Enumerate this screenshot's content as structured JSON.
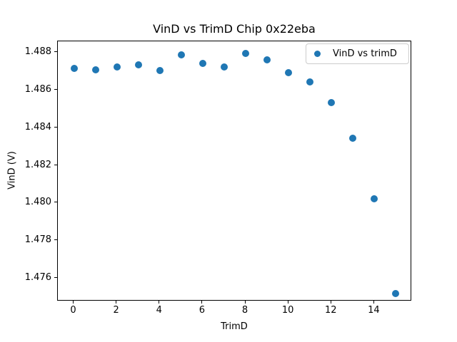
{
  "chart_data": {
    "type": "scatter",
    "title": "VinD vs TrimD Chip 0x22eba",
    "xlabel": "TrimD",
    "ylabel": "VinD (V)",
    "legend": {
      "position": "upper right",
      "entries": [
        "VinD vs trimD"
      ]
    },
    "marker_color": "#1f77b4",
    "grid": false,
    "x": [
      0,
      1,
      2,
      3,
      4,
      5,
      6,
      7,
      8,
      9,
      10,
      11,
      12,
      13,
      14,
      15
    ],
    "y": [
      1.48715,
      1.48706,
      1.48721,
      1.48732,
      1.48702,
      1.48785,
      1.4874,
      1.48721,
      1.48792,
      1.48758,
      1.48691,
      1.48642,
      1.48532,
      1.48343,
      1.48023,
      1.47521
    ],
    "xlim": [
      -0.75,
      15.75
    ],
    "ylim": [
      1.47479,
      1.48857
    ],
    "x_ticks": [
      0,
      2,
      4,
      6,
      8,
      10,
      12,
      14
    ],
    "y_ticks": [
      1.476,
      1.478,
      1.48,
      1.482,
      1.484,
      1.486,
      1.488
    ],
    "y_tick_decimals": 3,
    "x_tick_decimals": 0
  }
}
